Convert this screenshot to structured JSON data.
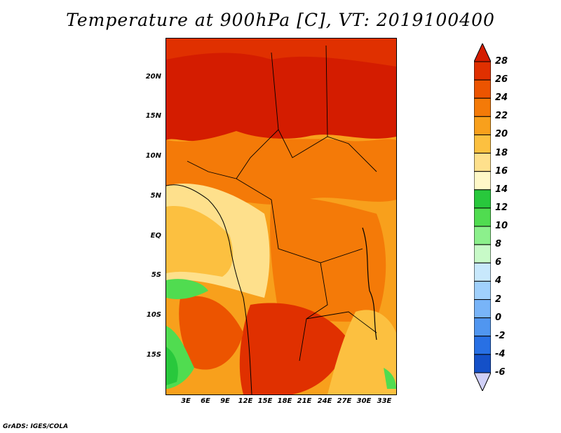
{
  "title": "Temperature at 900hPa [C], VT: 2019100400",
  "footer": "GrADS: IGES/COLA",
  "lat_labels": [
    "20N",
    "15N",
    "10N",
    "5N",
    "EQ",
    "5S",
    "10S",
    "15S"
  ],
  "lon_labels": [
    "3E",
    "6E",
    "9E",
    "12E",
    "15E",
    "18E",
    "21E",
    "24E",
    "27E",
    "30E",
    "33E"
  ],
  "colorbar": {
    "labels": [
      "28",
      "26",
      "24",
      "22",
      "20",
      "18",
      "16",
      "14",
      "12",
      "10",
      "8",
      "6",
      "4",
      "2",
      "0",
      "-2",
      "-4",
      "-6"
    ],
    "colors": [
      "#d41c00",
      "#e03000",
      "#ec5400",
      "#f47a08",
      "#f8a01c",
      "#fcc040",
      "#fee08c",
      "#fff8c8",
      "#28c83c",
      "#50dc50",
      "#8cf08c",
      "#c8fac8",
      "#c8e8fc",
      "#a0d0fc",
      "#78b4f8",
      "#5096f0",
      "#2870e4",
      "#1450c8",
      "#0a32a0",
      "#06186e"
    ]
  },
  "map_colors": {
    "hot": "#d41c00",
    "warm": "#ec5400",
    "mid": "#f47a08",
    "mild": "#f8a01c",
    "cool": "#fcc040",
    "pale": "#fee08c",
    "green": "#28c83c",
    "lightgreen": "#50dc50"
  }
}
